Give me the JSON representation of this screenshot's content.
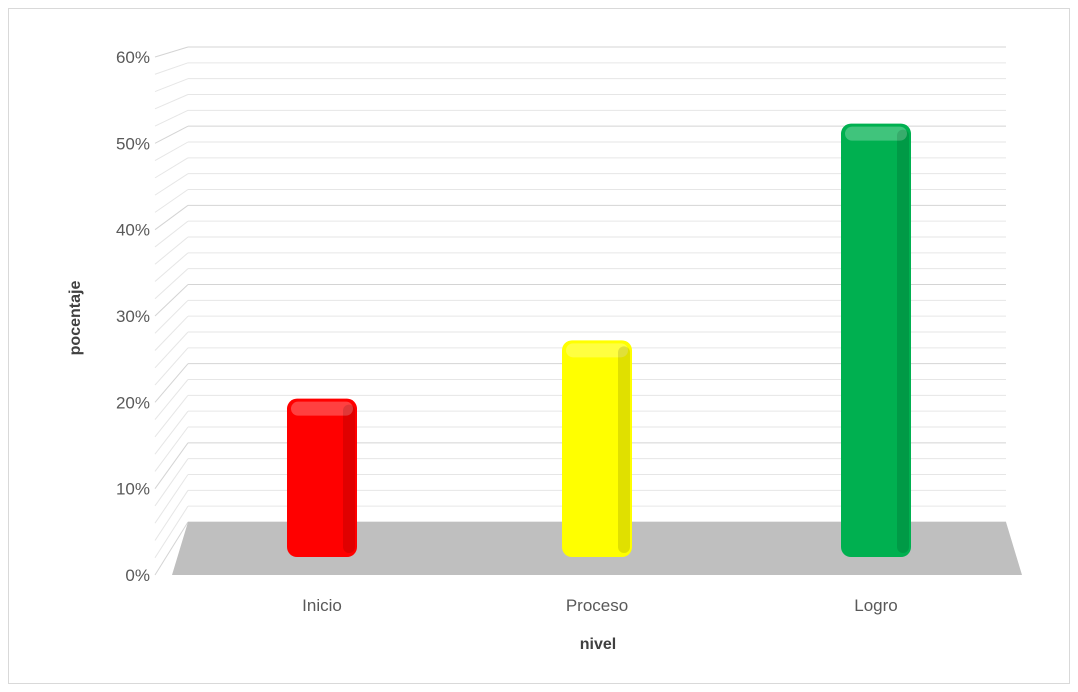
{
  "chart_data": {
    "type": "bar",
    "title": "",
    "xlabel": "nivel",
    "ylabel": "pocentaje",
    "categories": [
      "Inicio",
      "Proceso",
      "Logro"
    ],
    "values": [
      0.19,
      0.26,
      0.52
    ],
    "ylim": [
      0,
      0.6
    ],
    "yticks": [
      0,
      0.1,
      0.2,
      0.3,
      0.4,
      0.5,
      0.6
    ],
    "ytick_labels": [
      "0%",
      "10%",
      "20%",
      "30%",
      "40%",
      "50%",
      "60%"
    ],
    "grid": true,
    "legend": "none",
    "colors": [
      "#ff0000",
      "#ffff00",
      "#00b050"
    ],
    "floor_color": "#bfbfbf"
  }
}
